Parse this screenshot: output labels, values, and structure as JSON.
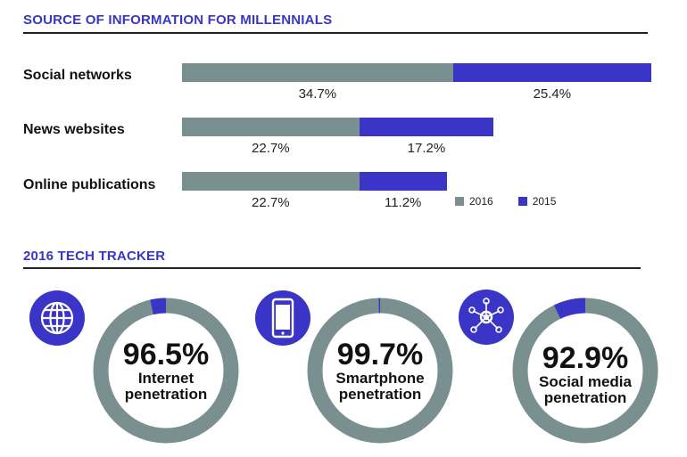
{
  "section1": {
    "title": "SOURCE OF INFORMATION FOR MILLENNIALS"
  },
  "section2": {
    "title": "2016 TECH TRACKER"
  },
  "colors": {
    "y2016": "#7a8f8f",
    "y2015": "#3a35c7",
    "ring": "#7a8f8f",
    "accent": "#3a35c7"
  },
  "chart_data": [
    {
      "type": "bar",
      "title": "SOURCE OF INFORMATION FOR MILLENNIALS",
      "orientation": "horizontal-stacked",
      "categories": [
        "Social networks",
        "News websites",
        "Online publications"
      ],
      "series": [
        {
          "name": "2016",
          "values": [
            34.7,
            22.7,
            22.7
          ]
        },
        {
          "name": "2015",
          "values": [
            25.4,
            17.2,
            11.2
          ]
        }
      ],
      "value_labels": [
        [
          "34.7%",
          "25.4%"
        ],
        [
          "22.7%",
          "17.2%"
        ],
        [
          "22.7%",
          "11.2%"
        ]
      ],
      "legend": [
        "2016",
        "2015"
      ],
      "legend_position": "bottom-right"
    },
    {
      "type": "pie",
      "title": "2016 TECH TRACKER",
      "items": [
        {
          "value": 96.5,
          "pct_label": "96.5%",
          "label_lines": [
            "Internet",
            "penetration"
          ],
          "icon": "globe-icon"
        },
        {
          "value": 99.7,
          "pct_label": "99.7%",
          "label_lines": [
            "Smartphone",
            "penetration"
          ],
          "icon": "smartphone-icon"
        },
        {
          "value": 92.9,
          "pct_label": "92.9%",
          "label_lines": [
            "Social media",
            "penetration"
          ],
          "icon": "network-icon"
        }
      ]
    }
  ]
}
